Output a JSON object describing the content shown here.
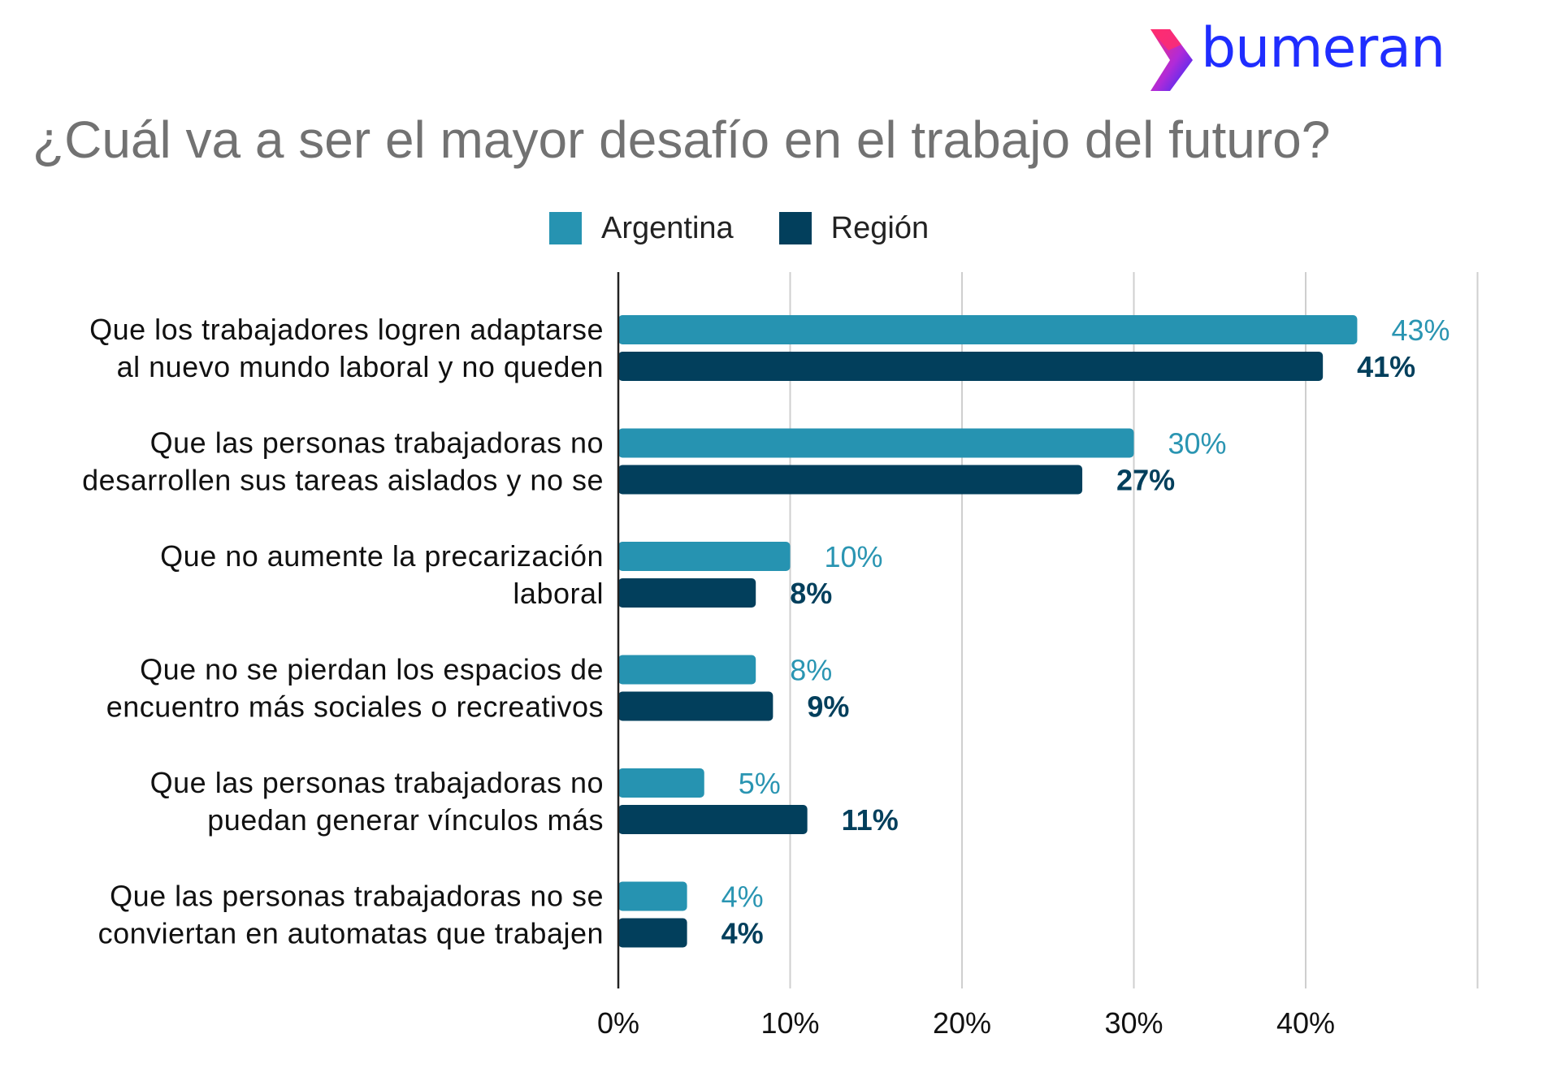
{
  "brand": {
    "logo_text": "bumeran"
  },
  "chart_data": {
    "type": "bar",
    "orientation": "horizontal",
    "title": "¿Cuál va a ser el mayor desafío en el trabajo del futuro?",
    "legend_position": "top",
    "grid": true,
    "xlim": [
      0,
      50
    ],
    "x_ticks": [
      0,
      10,
      20,
      30,
      40
    ],
    "x_tick_labels": [
      "0%",
      "10%",
      "20%",
      "30%",
      "40%"
    ],
    "categories": [
      [
        "Que los trabajadores logren adaptarse",
        "al nuevo mundo laboral y no queden"
      ],
      [
        "Que las personas trabajadoras no",
        "desarrollen sus tareas aislados y no se"
      ],
      [
        "Que no aumente la precarización",
        "laboral"
      ],
      [
        "Que no se pierdan los espacios de",
        "encuentro más sociales o recreativos"
      ],
      [
        "Que las personas trabajadoras no",
        "puedan generar vínculos más"
      ],
      [
        "Que las personas trabajadoras no se",
        "conviertan en automatas que trabajen"
      ]
    ],
    "series": [
      {
        "name": "Argentina",
        "color": "#2693b1",
        "values": [
          43,
          30,
          10,
          8,
          5,
          4
        ],
        "labels": [
          "43%",
          "30%",
          "10%",
          "8%",
          "5%",
          "4%"
        ]
      },
      {
        "name": "Región",
        "color": "#023f5c",
        "values": [
          41,
          27,
          8,
          9,
          11,
          4
        ],
        "labels": [
          "41%",
          "27%",
          "8%",
          "9%",
          "11%",
          "4%"
        ]
      }
    ]
  }
}
